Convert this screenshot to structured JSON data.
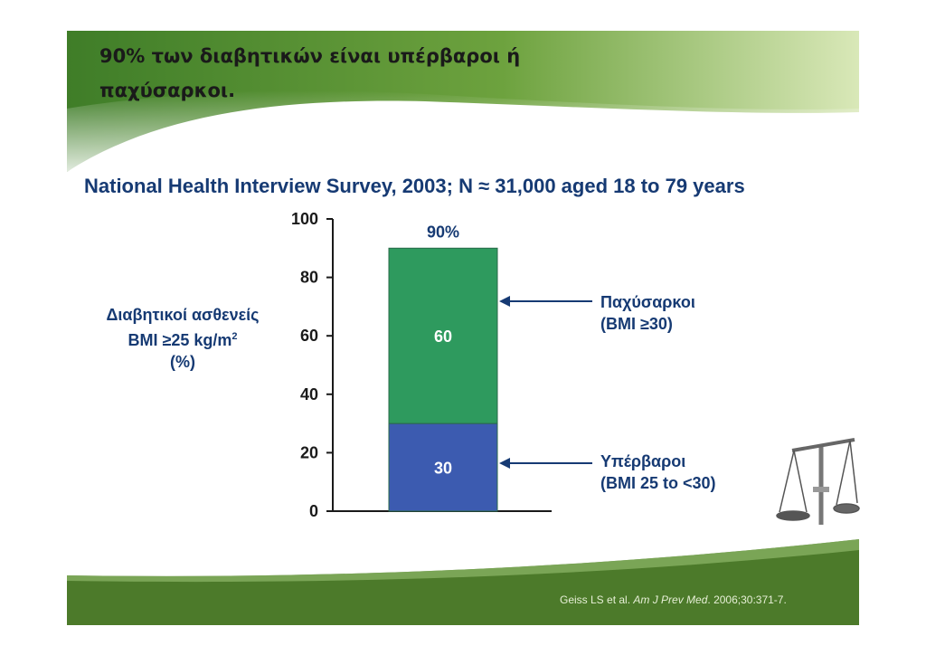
{
  "slide": {
    "title_line1": "90% των διαβητικών είναι υπέρβαροι ή",
    "title_line2": "παχύσαρκοι.",
    "subtitle": "National Health Interview Survey, 2003; N ≈ 31,000 aged 18 to 79 years",
    "citation": {
      "authors": "Geiss LS et al. ",
      "journal": "Am J Prev Med",
      "rest": ". 2006;30:371-7."
    }
  },
  "colors": {
    "header_green": "#4f8a2c",
    "footer_green": "#4c7a2a",
    "obese_green": "#2e9a5e",
    "overweight_blue": "#3c5bb0",
    "text_navy": "#163a73"
  },
  "chart_data": {
    "type": "bar",
    "stacked": true,
    "categories": [
      ""
    ],
    "series": [
      {
        "name": "Υπέρβαροι (BMI 25 to <30)",
        "values": [
          30
        ],
        "color": "#3c5bb0"
      },
      {
        "name": "Παχύσαρκοι (BMI ≥30)",
        "values": [
          60
        ],
        "color": "#2e9a5e"
      }
    ],
    "total_label": "90%",
    "data_labels": [
      "30",
      "60"
    ],
    "ylabel_lines": [
      "Διαβητικοί  ασθενείς",
      "BMI ≥25 kg/m",
      "2",
      "(%)"
    ],
    "ylim": [
      0,
      100
    ],
    "yticks": [
      0,
      20,
      40,
      60,
      80,
      100
    ],
    "annotations": [
      {
        "lines": [
          "Παχύσαρκοι",
          "(BMI ≥30)"
        ],
        "points_to": "Παχύσαρκοι"
      },
      {
        "lines": [
          "Υπέρβαροι",
          "(BMI 25 to <30)"
        ],
        "points_to": "Υπέρβαροι"
      }
    ],
    "grid": false,
    "legend": "none"
  }
}
